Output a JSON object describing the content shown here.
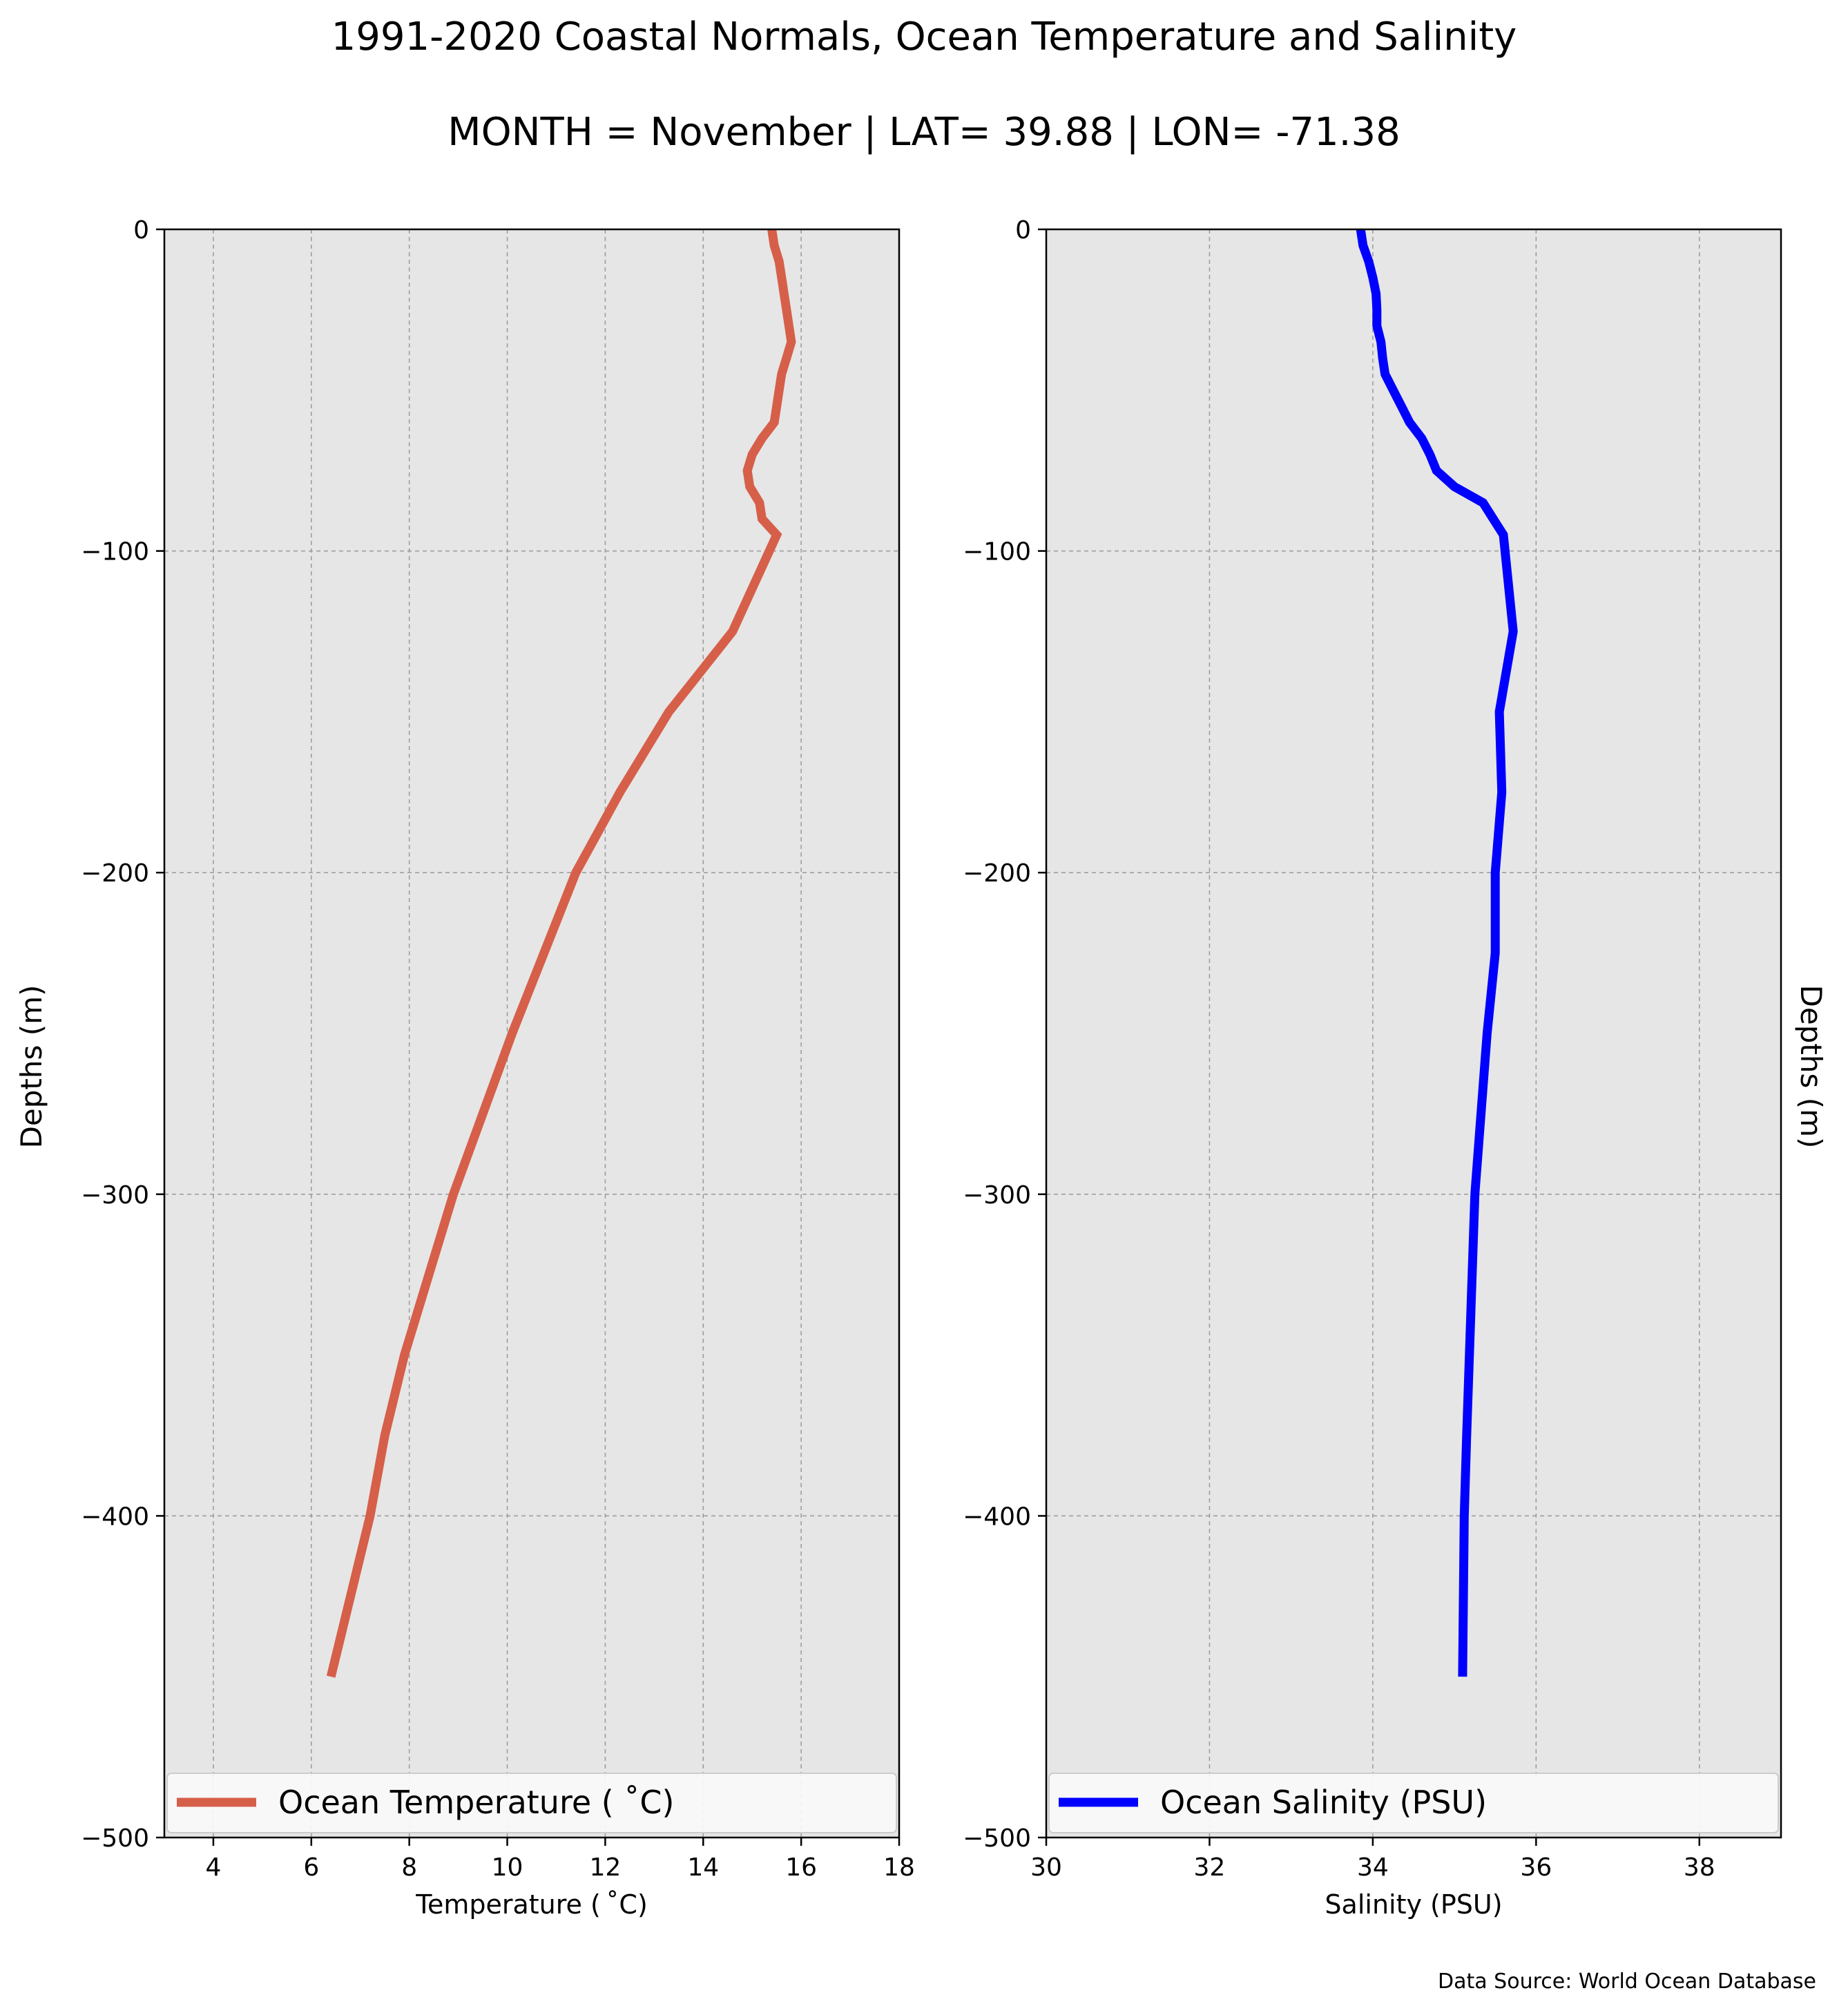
{
  "figure": {
    "title": "1991-2020 Coastal Normals, Ocean Temperature and Salinity",
    "subtitle": "MONTH = November | LAT= 39.88 | LON= -71.38",
    "source_note": "Data Source: World Ocean Database",
    "colors": {
      "plot_background": "#e6e6e6",
      "grid": "#999999"
    }
  },
  "chart_data": [
    {
      "type": "line",
      "xlabel": "Temperature ($^\\circ$C)",
      "xlabel_display": "Temperature ( ˚C)",
      "ylabel": "Depths (m)",
      "xlim": [
        3,
        18
      ],
      "ylim": [
        -500,
        0
      ],
      "x_ticks": [
        4,
        6,
        8,
        10,
        12,
        14,
        16,
        18
      ],
      "y_ticks": [
        0,
        -100,
        -200,
        -300,
        -400,
        -500
      ],
      "y_tick_labels": [
        "0",
        "−100",
        "−200",
        "−300",
        "−400",
        "−500"
      ],
      "grid": true,
      "legend": {
        "position": "bottom",
        "label": "Ocean Temperature ( ˚C)"
      },
      "series": [
        {
          "name": "Ocean Temperature ( ˚C)",
          "color": "#d65f4a",
          "points": [
            [
              15.4,
              0
            ],
            [
              15.45,
              -5
            ],
            [
              15.55,
              -10
            ],
            [
              15.6,
              -15
            ],
            [
              15.65,
              -20
            ],
            [
              15.7,
              -25
            ],
            [
              15.75,
              -30
            ],
            [
              15.8,
              -35
            ],
            [
              15.7,
              -40
            ],
            [
              15.6,
              -45
            ],
            [
              15.55,
              -50
            ],
            [
              15.5,
              -55
            ],
            [
              15.45,
              -60
            ],
            [
              15.2,
              -65
            ],
            [
              15.0,
              -70
            ],
            [
              14.9,
              -75
            ],
            [
              14.95,
              -80
            ],
            [
              15.15,
              -85
            ],
            [
              15.2,
              -90
            ],
            [
              15.5,
              -95
            ],
            [
              14.6,
              -125
            ],
            [
              13.3,
              -150
            ],
            [
              12.3,
              -175
            ],
            [
              11.4,
              -200
            ],
            [
              10.1,
              -250
            ],
            [
              8.9,
              -300
            ],
            [
              7.9,
              -350
            ],
            [
              7.5,
              -375
            ],
            [
              7.2,
              -400
            ],
            [
              6.4,
              -450
            ]
          ]
        }
      ]
    },
    {
      "type": "line",
      "xlabel": "Salinity (PSU)",
      "ylabel": "Depths (m)",
      "xlim": [
        30,
        39
      ],
      "ylim": [
        -500,
        0
      ],
      "x_ticks": [
        30,
        32,
        34,
        36,
        38
      ],
      "y_ticks": [
        0,
        -100,
        -200,
        -300,
        -400,
        -500
      ],
      "y_tick_labels": [
        "0",
        "−100",
        "−200",
        "−300",
        "−400",
        "−500"
      ],
      "grid": true,
      "legend": {
        "position": "bottom",
        "label": "Ocean Salinity (PSU)"
      },
      "series": [
        {
          "name": "Ocean Salinity (PSU)",
          "color": "#0000ff",
          "points": [
            [
              33.85,
              0
            ],
            [
              33.88,
              -5
            ],
            [
              33.95,
              -10
            ],
            [
              34.0,
              -15
            ],
            [
              34.04,
              -20
            ],
            [
              34.05,
              -25
            ],
            [
              34.05,
              -30
            ],
            [
              34.1,
              -35
            ],
            [
              34.12,
              -40
            ],
            [
              34.15,
              -45
            ],
            [
              34.25,
              -50
            ],
            [
              34.35,
              -55
            ],
            [
              34.45,
              -60
            ],
            [
              34.6,
              -65
            ],
            [
              34.7,
              -70
            ],
            [
              34.78,
              -75
            ],
            [
              35.0,
              -80
            ],
            [
              35.35,
              -85
            ],
            [
              35.6,
              -95
            ],
            [
              35.72,
              -125
            ],
            [
              35.55,
              -150
            ],
            [
              35.58,
              -175
            ],
            [
              35.5,
              -200
            ],
            [
              35.5,
              -225
            ],
            [
              35.4,
              -250
            ],
            [
              35.25,
              -300
            ],
            [
              35.15,
              -375
            ],
            [
              35.12,
              -400
            ],
            [
              35.1,
              -450
            ]
          ]
        }
      ]
    }
  ]
}
